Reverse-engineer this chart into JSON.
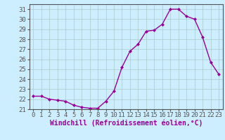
{
  "hours": [
    0,
    1,
    2,
    3,
    4,
    5,
    6,
    7,
    8,
    9,
    10,
    11,
    12,
    13,
    14,
    15,
    16,
    17,
    18,
    19,
    20,
    21,
    22,
    23
  ],
  "values": [
    22.3,
    22.3,
    22.0,
    21.9,
    21.8,
    21.4,
    21.2,
    21.1,
    21.1,
    21.8,
    22.8,
    25.2,
    26.8,
    27.5,
    28.8,
    28.9,
    29.5,
    31.0,
    31.0,
    30.3,
    30.0,
    28.2,
    25.7,
    24.5
  ],
  "line_color": "#990099",
  "marker": "D",
  "marker_size": 2,
  "bg_color": "#cceeff",
  "grid_color": "#aacccc",
  "xlim": [
    -0.5,
    23.5
  ],
  "ylim": [
    21.0,
    31.5
  ],
  "yticks": [
    21,
    22,
    23,
    24,
    25,
    26,
    27,
    28,
    29,
    30,
    31
  ],
  "xticks": [
    0,
    1,
    2,
    3,
    4,
    5,
    6,
    7,
    8,
    9,
    10,
    11,
    12,
    13,
    14,
    15,
    16,
    17,
    18,
    19,
    20,
    21,
    22,
    23
  ],
  "xlabel": "Windchill (Refroidissement éolien,°C)",
  "xlabel_fontsize": 7,
  "tick_fontsize": 6.5,
  "line_width": 1.0,
  "spine_color": "#555555"
}
